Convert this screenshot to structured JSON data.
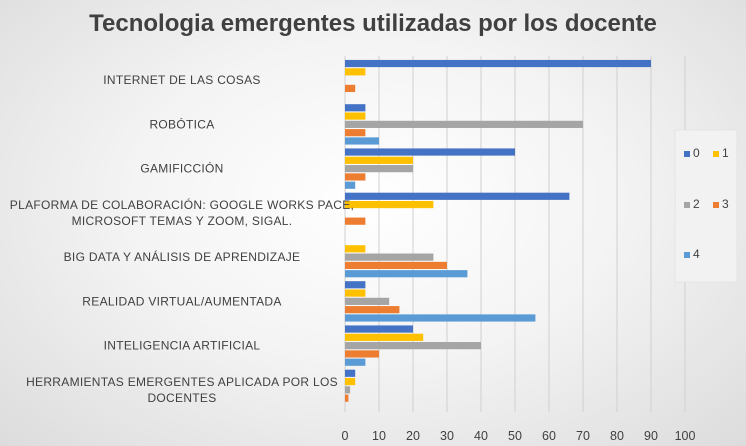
{
  "chart_data": {
    "type": "bar",
    "orientation": "horizontal",
    "title": "Tecnologia emergentes utilizadas por los docente",
    "categories": [
      [
        "INTERNET DE LAS COSAS"
      ],
      [
        "ROBÓTICA"
      ],
      [
        "GAMIFICCIÓN"
      ],
      [
        "PLAFORMA DE COLABORACIÓN: GOOGLE WORKS PACE,",
        "MICROSOFT TEMAS Y ZOOM, SIGAL."
      ],
      [
        "BIG DATA Y ANÁLISIS DE APRENDIZAJE"
      ],
      [
        "REALIDAD VIRTUAL/AUMENTADA"
      ],
      [
        "INTELIGENCIA ARTIFICIAL"
      ],
      [
        "HERRAMIENTAS EMERGENTES APLICADA POR LOS",
        "DOCENTES"
      ]
    ],
    "series": [
      {
        "name": "0",
        "color": "#4472C4",
        "values": [
          90,
          6,
          50,
          66,
          0,
          6,
          20,
          3
        ]
      },
      {
        "name": "1",
        "color": "#FFC000",
        "values": [
          6,
          6,
          20,
          26,
          6,
          6,
          23,
          3
        ]
      },
      {
        "name": "2",
        "color": "#A5A5A5",
        "values": [
          0,
          70,
          20,
          0,
          26,
          13,
          40,
          1.5
        ]
      },
      {
        "name": "3",
        "color": "#ED7D31",
        "values": [
          3,
          6,
          6,
          6,
          30,
          16,
          10,
          1
        ]
      },
      {
        "name": "4",
        "color": "#5B9BD5",
        "values": [
          0,
          10,
          3,
          0,
          36,
          56,
          6,
          0
        ]
      }
    ],
    "xlim": [
      0,
      100
    ],
    "xticks": [
      0,
      10,
      20,
      30,
      40,
      50,
      60,
      70,
      80,
      90,
      100
    ],
    "grid": "vertical",
    "legend_position": "right"
  }
}
